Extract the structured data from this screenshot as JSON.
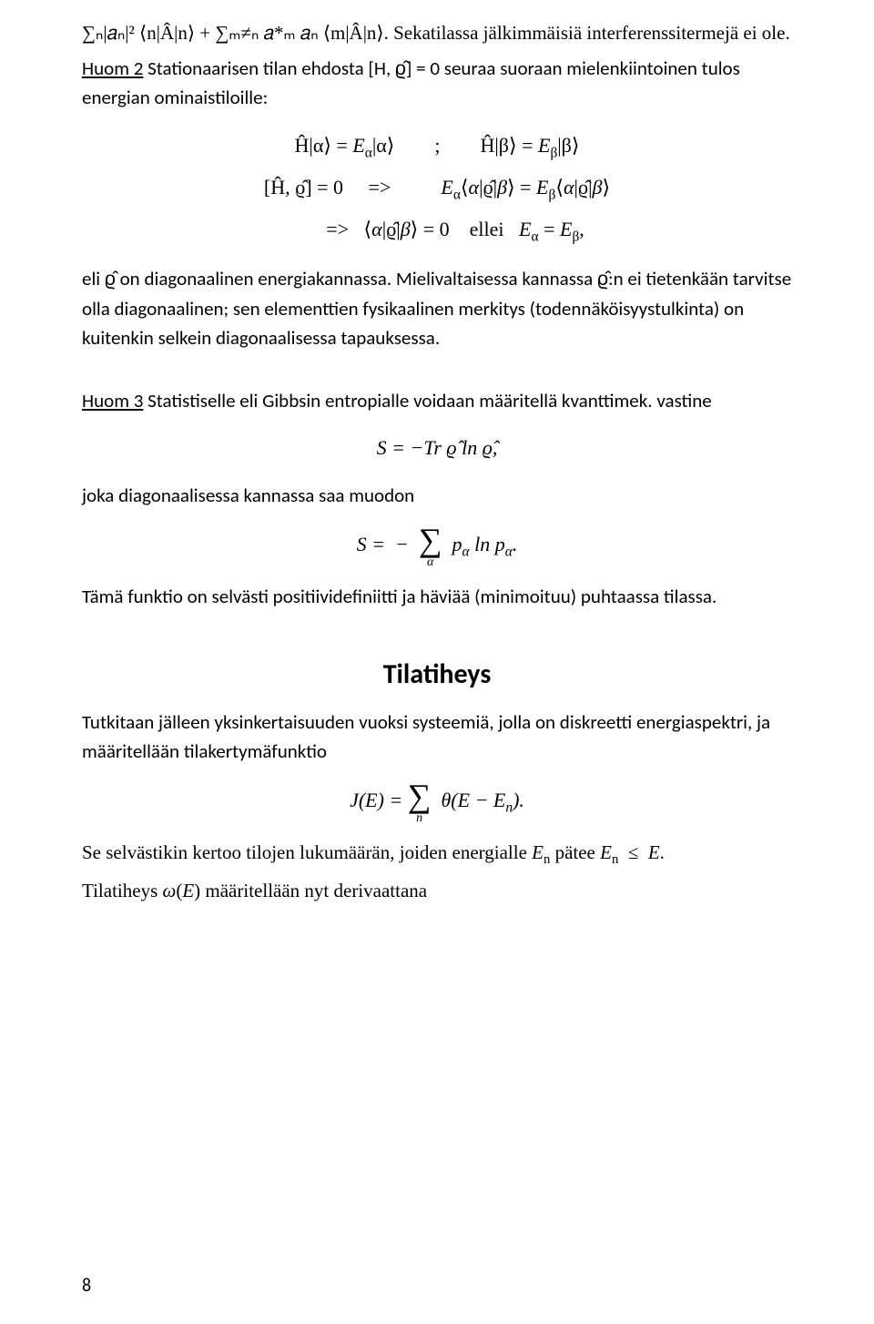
{
  "page_number": "8",
  "p1": "∑ₙ|𝑎ₙ|² ⟨n|Â|n⟩ + ∑ₘ≠ₙ 𝑎*ₘ 𝑎ₙ ⟨m|Â|n⟩. Sekatilassa jälkimmäisiä interferenssitermejä ei ole.",
  "p2_a": "Huom 2",
  "p2_b": " Stationaarisen tilan ehdosta [Ĥ, ϱ̂] = 0 seuraa suoraan mielenkiintoinen tulos energian ominaistiloille:",
  "eq1_l1": "Ĥ|α⟩ = Eα|α⟩        ;        Ĥ|β⟩ = Eβ|β⟩",
  "eq1_l2": "[Ĥ, ϱ̂] = 0     =>          Eα⟨α|ϱ̂|β⟩ = Eβ⟨α|ϱ̂|β⟩",
  "eq1_l3": "=>   ⟨α|ϱ̂|β⟩ = 0    ellei   Eα = Eβ,",
  "p3": "eli ϱ̂ on diagonaalinen energiakannassa. Mielivaltaisessa kannassa ϱ̂:n ei tietenkään tarvitse olla diagonaalinen; sen elementtien fysikaalinen merkitys (todennäköisyystulkinta) on kuitenkin selkein diagonaalisessa tapauksessa.",
  "p4_a": "Huom 3",
  "p4_b": " Statistiselle eli Gibbsin entropialle voidaan määritellä kvanttimek. vastine",
  "eq2": "S = −Tr ϱ̂ ln ϱ̂,",
  "p5": "joka diagonaalisessa kannassa saa muodon",
  "eq3_pre": "S = −  ",
  "eq3_post": "  pα ln pα.",
  "eq3_under": "α",
  "p6": "Tämä funktio on selvästi positiividefiniitti ja häviää (minimoituu) puhtaassa tilassa.",
  "section_title": "Tilatiheys",
  "p7": "Tutkitaan jälleen yksinkertaisuuden vuoksi systeemiä, jolla on diskreetti energiaspektri, ja määritellään tilakertymäfunktio",
  "eq4_pre": "J(E) = ",
  "eq4_post": " θ(E − Eₙ).",
  "eq4_under": "n",
  "p8": "Se selvästikin kertoo tilojen lukumäärän, joiden energialle Eₙ pätee Eₙ  ≤  E.",
  "p9": "Tilatiheys ω(E) määritellään nyt derivaattana"
}
